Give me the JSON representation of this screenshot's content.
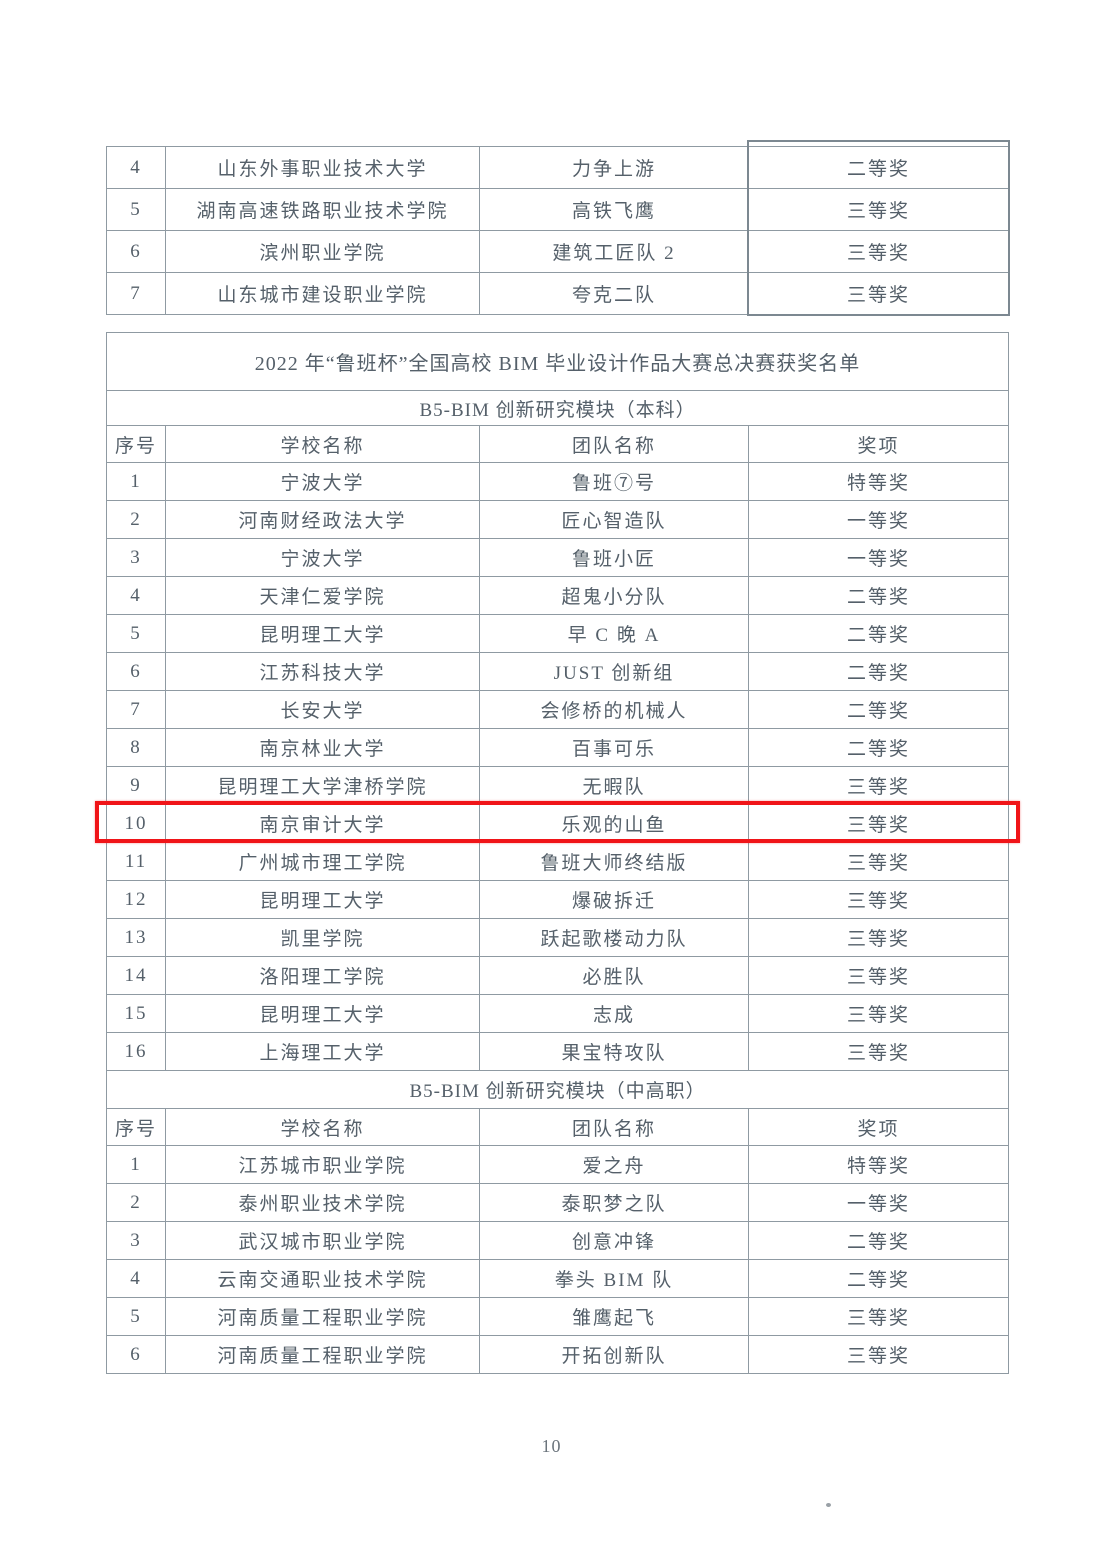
{
  "page": {
    "number": "10"
  },
  "colors": {
    "highlight_red": "#f01418",
    "table_border_gray": "#8f9aa2",
    "text_gray": "#55606a"
  },
  "table_top": {
    "rows": [
      {
        "no": "4",
        "school": "山东外事职业技术大学",
        "team": "力争上游",
        "award": "二等奖"
      },
      {
        "no": "5",
        "school": "湖南高速铁路职业技术学院",
        "team": "高铁飞鹰",
        "award": "三等奖"
      },
      {
        "no": "6",
        "school": "滨州职业学院",
        "team": "建筑工匠队 2",
        "award": "三等奖"
      },
      {
        "no": "7",
        "school": "山东城市建设职业学院",
        "team": "夸克二队",
        "award": "三等奖"
      }
    ]
  },
  "table_main": {
    "title": "2022 年“鲁班杯”全国高校 BIM 毕业设计作品大赛总决赛获奖名单",
    "sections": [
      {
        "name": "B5-BIM 创新研究模块（本科）",
        "headers": [
          "序号",
          "学校名称",
          "团队名称",
          "奖项"
        ],
        "highlighted_row_no": "10",
        "rows": [
          {
            "no": "1",
            "school": "宁波大学",
            "team": "鲁班⑦号",
            "award": "特等奖"
          },
          {
            "no": "2",
            "school": "河南财经政法大学",
            "team": "匠心智造队",
            "award": "一等奖"
          },
          {
            "no": "3",
            "school": "宁波大学",
            "team": "鲁班小匠",
            "award": "一等奖"
          },
          {
            "no": "4",
            "school": "天津仁爱学院",
            "team": "超鬼小分队",
            "award": "二等奖"
          },
          {
            "no": "5",
            "school": "昆明理工大学",
            "team": "早 C 晚 A",
            "award": "二等奖"
          },
          {
            "no": "6",
            "school": "江苏科技大学",
            "team": "JUST 创新组",
            "award": "二等奖"
          },
          {
            "no": "7",
            "school": "长安大学",
            "team": "会修桥的机械人",
            "award": "二等奖"
          },
          {
            "no": "8",
            "school": "南京林业大学",
            "team": "百事可乐",
            "award": "二等奖"
          },
          {
            "no": "9",
            "school": "昆明理工大学津桥学院",
            "team": "无暇队",
            "award": "三等奖"
          },
          {
            "no": "10",
            "school": "南京审计大学",
            "team": "乐观的山鱼",
            "award": "三等奖"
          },
          {
            "no": "11",
            "school": "广州城市理工学院",
            "team": "鲁班大师终结版",
            "award": "三等奖"
          },
          {
            "no": "12",
            "school": "昆明理工大学",
            "team": "爆破拆迁",
            "award": "三等奖"
          },
          {
            "no": "13",
            "school": "凯里学院",
            "team": "跃起歌楼动力队",
            "award": "三等奖"
          },
          {
            "no": "14",
            "school": "洛阳理工学院",
            "team": "必胜队",
            "award": "三等奖"
          },
          {
            "no": "15",
            "school": "昆明理工大学",
            "team": "志成",
            "award": "三等奖"
          },
          {
            "no": "16",
            "school": "上海理工大学",
            "team": "果宝特攻队",
            "award": "三等奖"
          }
        ]
      },
      {
        "name": "B5-BIM 创新研究模块（中高职）",
        "headers": [
          "序号",
          "学校名称",
          "团队名称",
          "奖项"
        ],
        "rows": [
          {
            "no": "1",
            "school": "江苏城市职业学院",
            "team": "爱之舟",
            "award": "特等奖"
          },
          {
            "no": "2",
            "school": "泰州职业技术学院",
            "team": "泰职梦之队",
            "award": "一等奖"
          },
          {
            "no": "3",
            "school": "武汉城市职业学院",
            "team": "创意冲锋",
            "award": "二等奖"
          },
          {
            "no": "4",
            "school": "云南交通职业技术学院",
            "team": "拳头 BIM 队",
            "award": "二等奖"
          },
          {
            "no": "5",
            "school": "河南质量工程职业学院",
            "team": "雏鹰起飞",
            "award": "三等奖"
          },
          {
            "no": "6",
            "school": "河南质量工程职业学院",
            "team": "开拓创新队",
            "award": "三等奖"
          }
        ]
      }
    ]
  }
}
